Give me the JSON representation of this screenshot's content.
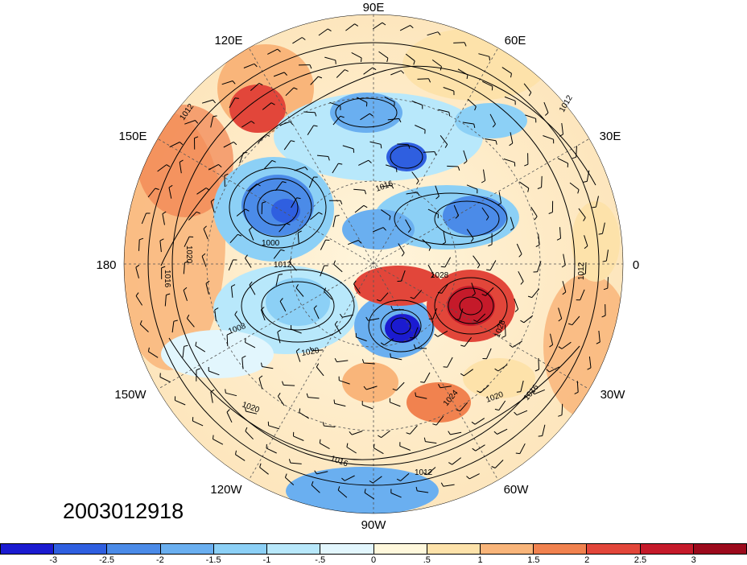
{
  "map": {
    "projection": "north-polar-stereographic",
    "longitude_labels": [
      "90E",
      "60E",
      "30E",
      "0",
      "30W",
      "60W",
      "90W",
      "120W",
      "150W",
      "180",
      "150E",
      "120E"
    ],
    "contour_labels": [
      "1012",
      "1016",
      "1020",
      "1024",
      "1028",
      "1008",
      "1004",
      "1000",
      "996",
      "1032"
    ],
    "shaded_field_anomalies": {
      "positive_centers": [
        "north-pacific-east-of-asia",
        "north-atlantic-near-greenland",
        "eurasia-west"
      ],
      "negative_centers": [
        "north-pacific-aleutian",
        "siberia",
        "canada",
        "north-america-east"
      ]
    }
  },
  "datestamp": "2003012918",
  "colorbar": {
    "colors": [
      "#1b1bd0",
      "#2f5fe0",
      "#4b8be8",
      "#6aaff0",
      "#8cd0f6",
      "#b8e8fb",
      "#e2f6fd",
      "#fff8dc",
      "#fde2aa",
      "#f9b57a",
      "#f1824f",
      "#e2463a",
      "#c51a2a",
      "#9c0a1c"
    ],
    "labels": [
      "-3",
      "-2.5",
      "-2",
      "-1.5",
      "-1",
      "-.5",
      "0",
      ".5",
      "1",
      "1.5",
      "2",
      "2.5",
      "3"
    ]
  }
}
